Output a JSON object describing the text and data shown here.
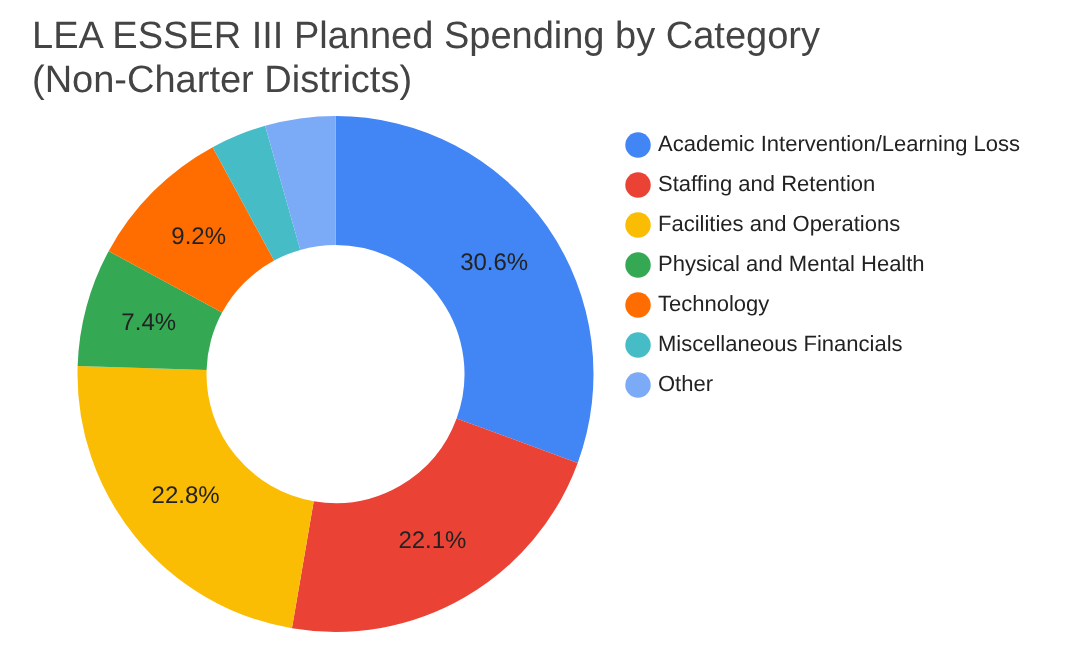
{
  "chart_data": {
    "type": "donut",
    "title": "LEA ESSER III Planned Spending by Category\n(Non-Charter Districts)",
    "categories": [
      "Academic Intervention/Learning Loss",
      "Staffing and Retention",
      "Facilities and Operations",
      "Physical and Mental Health",
      "Technology",
      "Miscellaneous Financials",
      "Other"
    ],
    "values": [
      30.6,
      22.1,
      22.8,
      7.4,
      9.2,
      3.5,
      4.4
    ],
    "colors": [
      "#4285f4",
      "#ea4335",
      "#fbbc04",
      "#34a853",
      "#ff6d01",
      "#46bdc6",
      "#7baaf7"
    ],
    "value_labels": [
      "30.6%",
      "22.1%",
      "22.8%",
      "7.4%",
      "9.2%",
      null,
      null
    ],
    "legend": "right"
  }
}
